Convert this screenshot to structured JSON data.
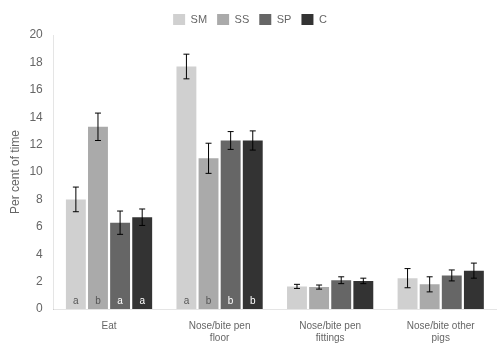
{
  "chart_data": {
    "type": "bar",
    "ylabel": "Per cent of time",
    "categories": [
      "Eat",
      "Nose/bite pen\nfloor",
      "Nose/bite pen\nfittings",
      "Nose/bite other\npigs"
    ],
    "series": [
      {
        "name": "SM",
        "color": "#d0d0d0",
        "values": [
          8.0,
          17.7,
          1.65,
          2.25
        ],
        "errors": [
          0.9,
          0.9,
          0.15,
          0.7
        ],
        "sig_labels": [
          "a",
          "a",
          null,
          null
        ]
      },
      {
        "name": "SS",
        "color": "#aaaaaa",
        "values": [
          13.3,
          11.0,
          1.6,
          1.8
        ],
        "errors": [
          1.0,
          1.1,
          0.15,
          0.55
        ],
        "sig_labels": [
          "b",
          "b",
          null,
          null
        ]
      },
      {
        "name": "SP",
        "color": "#666666",
        "values": [
          6.3,
          12.3,
          2.1,
          2.45
        ],
        "errors": [
          0.85,
          0.65,
          0.25,
          0.4
        ],
        "sig_labels": [
          "a",
          "b",
          null,
          null
        ]
      },
      {
        "name": "C",
        "color": "#333333",
        "values": [
          6.7,
          12.3,
          2.05,
          2.8
        ],
        "errors": [
          0.6,
          0.7,
          0.2,
          0.55
        ],
        "sig_labels": [
          "a",
          "b",
          null,
          null
        ]
      }
    ],
    "ylim": [
      0,
      20
    ],
    "yticks": [
      0,
      2,
      4,
      6,
      8,
      10,
      12,
      14,
      16,
      18,
      20
    ],
    "grid": false,
    "legend": "top"
  }
}
